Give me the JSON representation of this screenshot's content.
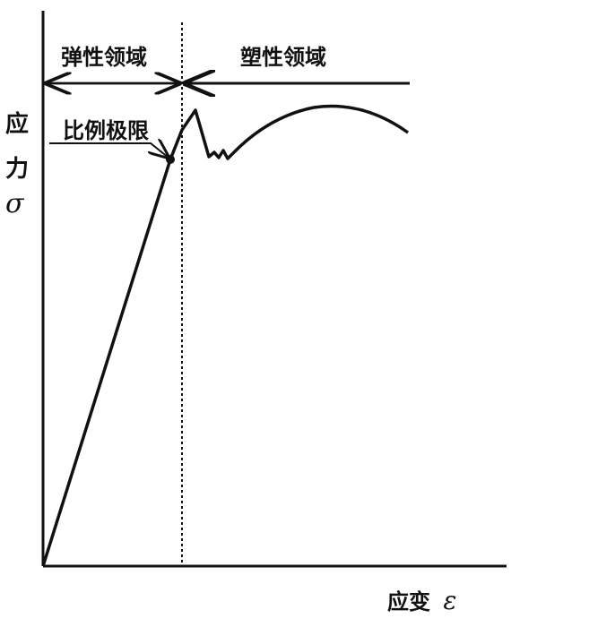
{
  "diagram": {
    "elastic_region_label": "弹性领域",
    "plastic_region_label": "塑性领域",
    "proportional_limit_label": "比例极限",
    "y_axis_label": {
      "line1": "应",
      "line2": "力",
      "symbol": "σ"
    },
    "x_axis_label": {
      "text": "应变",
      "symbol": "ε"
    },
    "line_color": "#111111"
  }
}
